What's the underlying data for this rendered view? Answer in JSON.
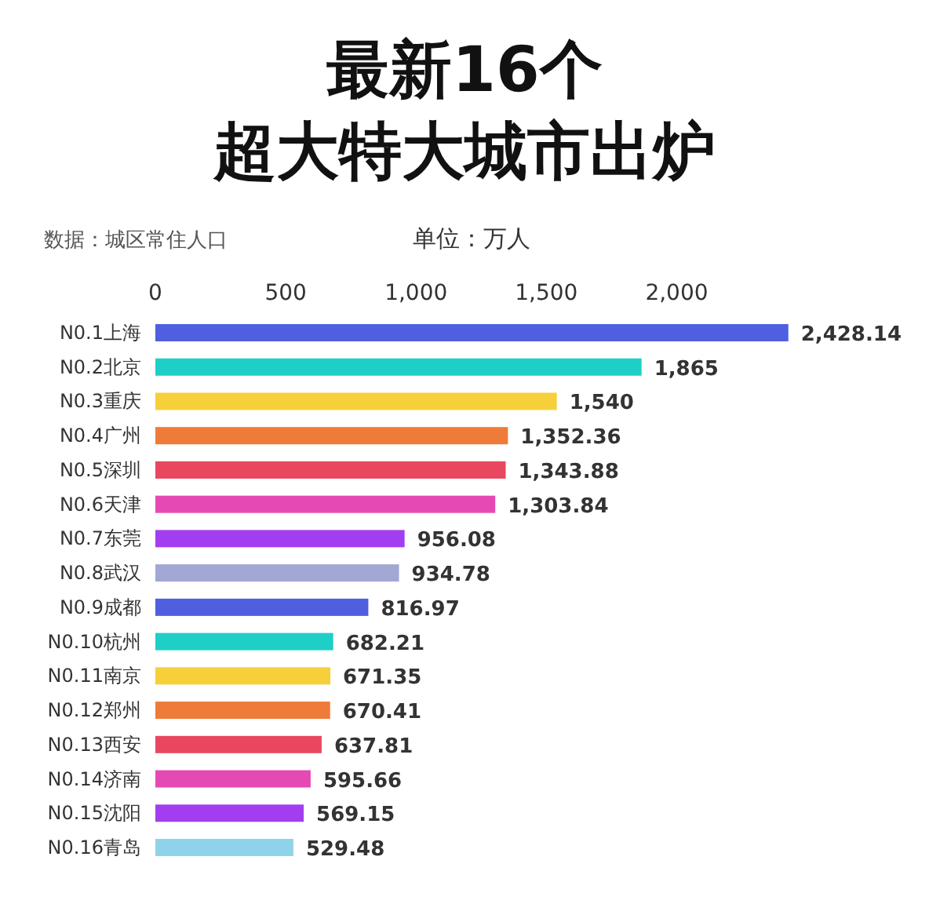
{
  "chart_data": {
    "type": "bar",
    "orientation": "horizontal",
    "title": "最新16个",
    "subtitle": "超大特大城市出炉",
    "annotations": [
      "数据：城区常住人口",
      "单位：万人"
    ],
    "categories": [
      "N0.1上海",
      "N0.2北京",
      "N0.3重庆",
      "N0.4广州",
      "N0.5深圳",
      "N0.6天津",
      "N0.7东莞",
      "N0.8武汉",
      "N0.9成都",
      "N0.10杭州",
      "N0.11南京",
      "N0.12郑州",
      "N0.13西安",
      "N0.14济南",
      "N0.15沈阳",
      "N0.16青岛"
    ],
    "values": [
      2428.14,
      1865,
      1540,
      1352.36,
      1343.88,
      1303.84,
      956.08,
      934.78,
      816.97,
      682.21,
      671.35,
      670.41,
      637.81,
      595.66,
      569.15,
      529.48
    ],
    "value_labels": [
      "2,428.14",
      "1,865",
      "1,540",
      "1,352.36",
      "1,343.88",
      "1,303.84",
      "956.08",
      "934.78",
      "816.97",
      "682.21",
      "671.35",
      "670.41",
      "637.81",
      "595.66",
      "569.15",
      "529.48"
    ],
    "colors": [
      "#4f5fe0",
      "#1dcfc7",
      "#f6cf3a",
      "#ef7b38",
      "#e8475f",
      "#e549b4",
      "#a23ef0",
      "#a3a7d4",
      "#4f5fe0",
      "#1dcfc7",
      "#f6cf3a",
      "#ef7b38",
      "#e8475f",
      "#e549b4",
      "#a23ef0",
      "#8fd3ea"
    ],
    "xlim": [
      0,
      2450
    ],
    "xticks": [
      0,
      500,
      {
        "value": 1000,
        "label": "1,000"
      },
      {
        "value": 1500,
        "label": "1,500"
      },
      {
        "value": 2000,
        "label": "2,000"
      }
    ]
  }
}
